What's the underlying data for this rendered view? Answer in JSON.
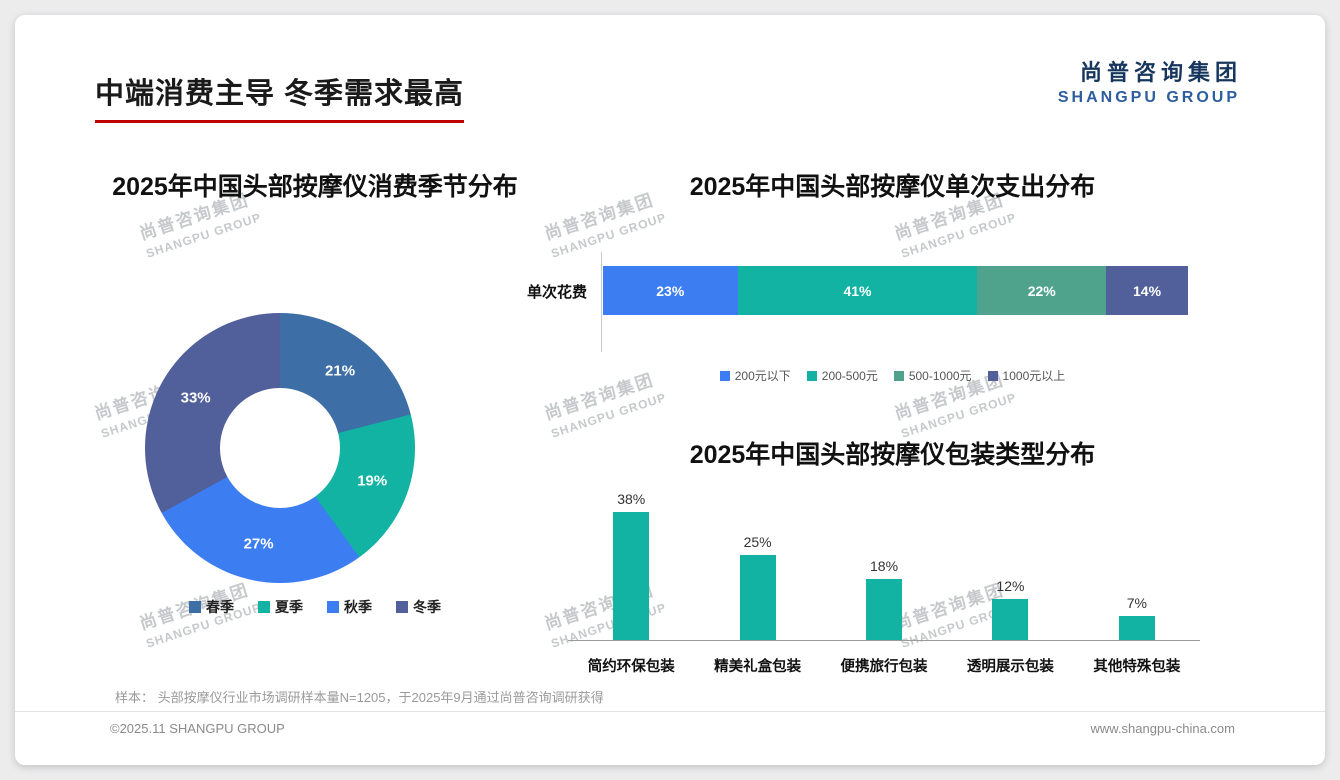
{
  "page": {
    "title": "中端消费主导 冬季需求最高",
    "logo": {
      "cn": "尚普咨询集团",
      "en": "SHANGPU GROUP"
    },
    "watermark": {
      "cn": "尚普咨询集团",
      "en": "SHANGPU GROUP"
    },
    "sample_note": "样本： 头部按摩仪行业市场调研样本量N=1205，于2025年9月通过尚普咨询调研获得",
    "footer": {
      "left": "©2025.11 SHANGPU GROUP",
      "right": "www.shangpu-china.com"
    }
  },
  "colors": {
    "accent_red": "#c00000",
    "teal": "#12b3a2",
    "bright_blue": "#3c7df2",
    "steel_blue": "#3d6ea5",
    "slate_blue": "#515f9b",
    "sea_green": "#4fa38c",
    "logo_navy": "#17365d",
    "logo_blue": "#2d5d9e"
  },
  "chart_data": [
    {
      "type": "pie",
      "subtype": "donut",
      "title": "2025年中国头部按摩仪消费季节分布",
      "labels": [
        "春季",
        "夏季",
        "秋季",
        "冬季"
      ],
      "values": [
        21,
        19,
        27,
        33
      ],
      "unit": "%",
      "colors": [
        "#3d6ea5",
        "#12b3a2",
        "#3c7df2",
        "#515f9b"
      ],
      "legend_position": "bottom",
      "start_angle": "top",
      "direction": "clockwise"
    },
    {
      "type": "bar",
      "subtype": "stacked-horizontal",
      "title": "2025年中国头部按摩仪单次支出分布",
      "row_label": "单次花费",
      "categories": [
        "200元以下",
        "200-500元",
        "500-1000元",
        "1000元以上"
      ],
      "values": [
        23,
        41,
        22,
        14
      ],
      "unit": "%",
      "colors": [
        "#3c7df2",
        "#12b3a2",
        "#4fa38c",
        "#515f9b"
      ],
      "legend_position": "bottom"
    },
    {
      "type": "bar",
      "subtype": "vertical",
      "title": "2025年中国头部按摩仪包装类型分布",
      "categories": [
        "简约环保包装",
        "精美礼盒包装",
        "便携旅行包装",
        "透明展示包装",
        "其他特殊包装"
      ],
      "values": [
        38,
        25,
        18,
        12,
        7
      ],
      "unit": "%",
      "color": "#12b3a2",
      "ylim": [
        0,
        40
      ],
      "grid": false
    }
  ]
}
